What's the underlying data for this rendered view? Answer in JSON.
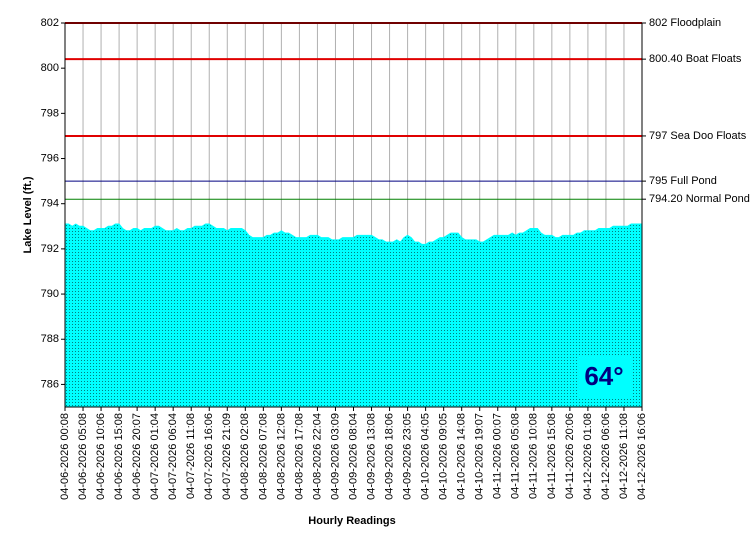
{
  "chart_data": {
    "type": "area",
    "y_axis_label": "Lake Level (ft.)",
    "x_axis_label": "Hourly Readings",
    "annotation": "64°",
    "color": "#00ffff",
    "ylim": [
      785,
      802
    ],
    "yticks": [
      786,
      788,
      790,
      792,
      794,
      796,
      798,
      800,
      802
    ],
    "reference_lines": [
      {
        "value": 802,
        "label": "802 Floodplain",
        "color": "#e00000"
      },
      {
        "value": 800.4,
        "label": "800.40 Boat Floats",
        "color": "#e00000"
      },
      {
        "value": 797,
        "label": "797 Sea Doo Floats",
        "color": "#e00000"
      },
      {
        "value": 795,
        "label": "795 Full Pond",
        "color": "#000080"
      },
      {
        "value": 794.2,
        "label": "794.20 Normal Pond",
        "color": "#008000"
      }
    ],
    "categories": [
      "04-06-2026 00:08",
      null,
      null,
      null,
      null,
      "04-06-2026 05:08",
      null,
      null,
      null,
      null,
      "04-06-2026 10:06",
      null,
      null,
      null,
      null,
      "04-06-2026 15:08",
      null,
      null,
      null,
      null,
      "04-06-2026 20:07",
      null,
      null,
      null,
      null,
      "04-07-2026 01:04",
      null,
      null,
      null,
      null,
      "04-07-2026 06:04",
      null,
      null,
      null,
      null,
      "04-07-2026 11:08",
      null,
      null,
      null,
      null,
      "04-07-2026 16:06",
      null,
      null,
      null,
      null,
      "04-07-2026 21:09",
      null,
      null,
      null,
      null,
      "04-08-2026 02:08",
      null,
      null,
      null,
      null,
      "04-08-2026 07:08",
      null,
      null,
      null,
      null,
      "04-08-2026 12:08",
      null,
      null,
      null,
      null,
      "04-08-2026 17:08",
      null,
      null,
      null,
      null,
      "04-08-2026 22:04",
      null,
      null,
      null,
      null,
      "04-09-2026 03:09",
      null,
      null,
      null,
      null,
      "04-09-2026 08:04",
      null,
      null,
      null,
      null,
      "04-09-2026 13:08",
      null,
      null,
      null,
      null,
      "04-09-2026 18:06",
      null,
      null,
      null,
      null,
      "04-09-2026 23:05",
      null,
      null,
      null,
      null,
      "04-10-2026 04:05",
      null,
      null,
      null,
      null,
      "04-10-2026 09:05",
      null,
      null,
      null,
      null,
      "04-10-2026 14:08",
      null,
      null,
      null,
      null,
      "04-10-2026 19:07",
      null,
      null,
      null,
      null,
      "04-11-2026 00:07",
      null,
      null,
      null,
      null,
      "04-11-2026 05:08",
      null,
      null,
      null,
      null,
      "04-11-2026 10:08",
      null,
      null,
      null,
      null,
      "04-11-2026 15:08",
      null,
      null,
      null,
      null,
      "04-11-2026 20:06",
      null,
      null,
      null,
      null,
      "04-12-2026 01:08",
      null,
      null,
      null,
      null,
      "04-12-2026 06:06",
      null,
      null,
      null,
      null,
      "04-12-2026 11:08",
      null,
      null,
      null,
      null,
      "04-12-2026 16:06"
    ],
    "values": [
      793.1,
      793.1,
      793.0,
      793.1,
      793.0,
      793.0,
      792.9,
      792.8,
      792.8,
      792.9,
      792.9,
      792.9,
      793.0,
      793.0,
      793.1,
      793.1,
      792.9,
      792.8,
      792.8,
      792.9,
      792.9,
      792.8,
      792.9,
      792.9,
      792.9,
      793.0,
      793.0,
      792.9,
      792.8,
      792.8,
      792.8,
      792.9,
      792.8,
      792.8,
      792.9,
      792.9,
      793.0,
      793.0,
      793.0,
      793.1,
      793.1,
      793.0,
      792.9,
      792.9,
      792.9,
      792.8,
      792.9,
      792.9,
      792.9,
      792.9,
      792.8,
      792.6,
      792.5,
      792.5,
      792.5,
      792.5,
      792.6,
      792.6,
      792.7,
      792.7,
      792.8,
      792.7,
      792.7,
      792.6,
      792.5,
      792.5,
      792.5,
      792.5,
      792.6,
      792.6,
      792.6,
      792.5,
      792.5,
      792.5,
      792.4,
      792.4,
      792.4,
      792.5,
      792.5,
      792.5,
      792.5,
      792.6,
      792.6,
      792.6,
      792.6,
      792.6,
      792.5,
      792.4,
      792.4,
      792.3,
      792.3,
      792.3,
      792.4,
      792.3,
      792.5,
      792.6,
      792.5,
      792.3,
      792.3,
      792.2,
      792.2,
      792.3,
      792.3,
      792.4,
      792.5,
      792.5,
      792.6,
      792.7,
      792.7,
      792.7,
      792.5,
      792.4,
      792.4,
      792.4,
      792.4,
      792.3,
      792.3,
      792.4,
      792.5,
      792.6,
      792.6,
      792.6,
      792.6,
      792.6,
      792.7,
      792.6,
      792.7,
      792.7,
      792.8,
      792.9,
      792.9,
      792.9,
      792.7,
      792.6,
      792.6,
      792.6,
      792.5,
      792.5,
      792.6,
      792.6,
      792.6,
      792.6,
      792.7,
      792.7,
      792.8,
      792.8,
      792.8,
      792.8,
      792.9,
      792.9,
      792.9,
      792.9,
      793.0,
      793.0,
      793.0,
      793.0,
      793.0,
      793.1,
      793.1,
      793.1,
      793.1
    ]
  }
}
